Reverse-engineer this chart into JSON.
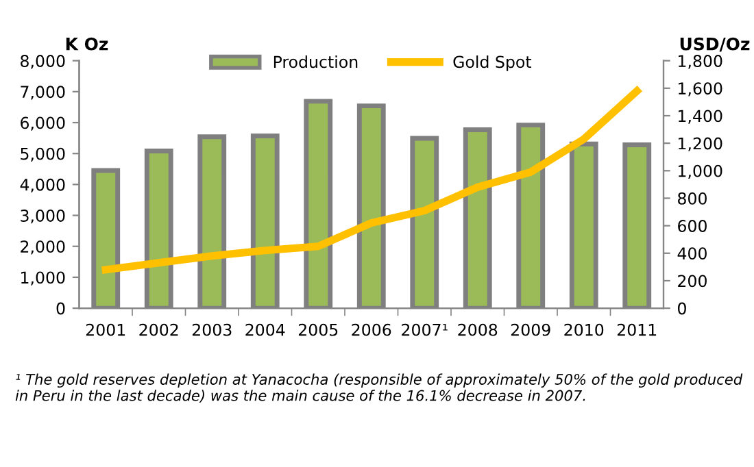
{
  "chart_data": {
    "type": "bar",
    "ylabel": "K Oz",
    "y2label": "USD/Oz",
    "categories": [
      "2001",
      "2002",
      "2003",
      "2004",
      "2005",
      "2006",
      "2007¹",
      "2008",
      "2009",
      "2010",
      "2011"
    ],
    "series": [
      {
        "name": "Production",
        "color": "#9bbb59",
        "values": [
          4450,
          5080,
          5540,
          5570,
          6690,
          6540,
          5490,
          5770,
          5920,
          5310,
          5280
        ]
      },
      {
        "name": "Gold Spot",
        "type": "line",
        "axis": "y2",
        "color": "#ffc000",
        "values": [
          280,
          330,
          380,
          420,
          450,
          620,
          710,
          880,
          990,
          1230,
          1580
        ]
      }
    ],
    "ylim": [
      0,
      8000
    ],
    "yticks": [
      {
        "value": 0,
        "label": "0"
      },
      {
        "value": 1000,
        "label": "1,000"
      },
      {
        "value": 2000,
        "label": "2,000"
      },
      {
        "value": 3000,
        "label": "3,000"
      },
      {
        "value": 4000,
        "label": "4,000"
      },
      {
        "value": 5000,
        "label": "5,000"
      },
      {
        "value": 6000,
        "label": "6,000"
      },
      {
        "value": 7000,
        "label": "7,000"
      },
      {
        "value": 8000,
        "label": "8,000"
      }
    ],
    "y2lim": [
      0,
      1800
    ],
    "y2ticks": [
      {
        "value": 0,
        "label": "0"
      },
      {
        "value": 200,
        "label": "200"
      },
      {
        "value": 400,
        "label": "400"
      },
      {
        "value": 600,
        "label": "600"
      },
      {
        "value": 800,
        "label": "800"
      },
      {
        "value": 1000,
        "label": "1,000"
      },
      {
        "value": 1200,
        "label": "1,200"
      },
      {
        "value": 1400,
        "label": "1,400"
      },
      {
        "value": 1600,
        "label": "1,600"
      },
      {
        "value": 1800,
        "label": "1,800"
      }
    ],
    "grid": false,
    "legend": "top",
    "marker": "none",
    "line_style": "solid",
    "annotations": [
      "¹ The gold reserves depletion at Yanacocha (responsible of approximately 50% of the gold produced in Peru in the last decade) was the main cause of the 16.1% decrease in 2007."
    ]
  }
}
